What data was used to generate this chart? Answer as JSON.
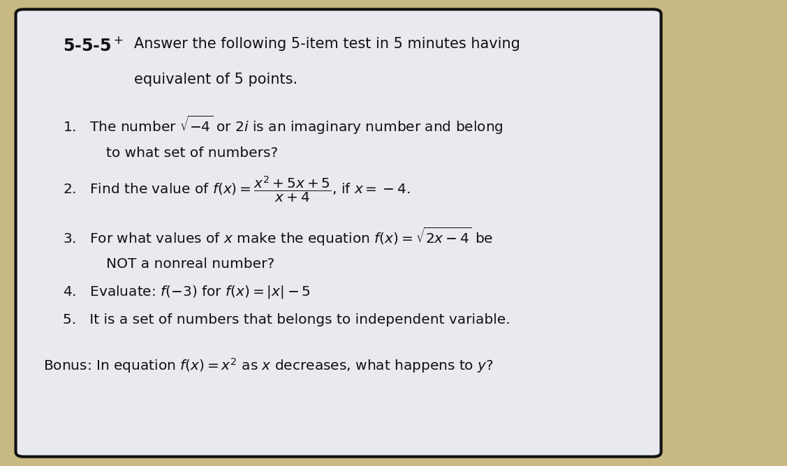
{
  "outer_bg": "#c8b882",
  "slide_bg": "#e8eaef",
  "border_color": "#111111",
  "text_color": "#111111",
  "title_555": "5-5-5",
  "title_line2": "Answer the following 5-item test in 5 minutes having",
  "title_line3": "equivalent of 5 points.",
  "bonus": "Bonus: In equation $f(x) = x^2$ as $x$ decreases, what happens to $y$?"
}
